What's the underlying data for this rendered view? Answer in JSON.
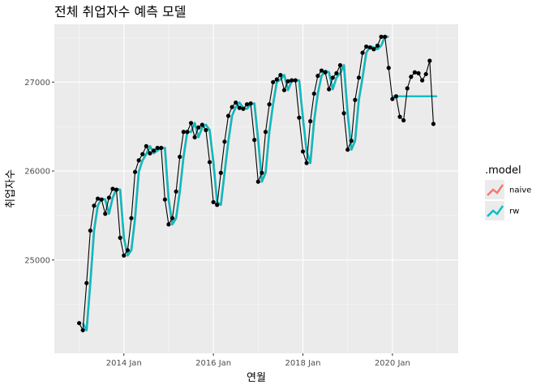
{
  "chart_data": {
    "type": "line",
    "title": "전체 취업자수 예측 모델",
    "xlabel": "연월",
    "ylabel": "취업자수",
    "x_start": "2013-01",
    "x_end": "2020-12",
    "x_ticks": [
      "2014 Jan",
      "2016 Jan",
      "2018 Jan",
      "2020 Jan"
    ],
    "y_ticks": [
      25000,
      26000,
      27000
    ],
    "ylim": [
      23950,
      27650
    ],
    "grid": true,
    "legend_position": "right",
    "legend_title": ".model",
    "observed": {
      "start": "2013-01",
      "values": [
        24290,
        24210,
        24740,
        25330,
        25610,
        25690,
        25680,
        25520,
        25700,
        25800,
        25790,
        25250,
        25050,
        25110,
        25470,
        25990,
        26120,
        26190,
        26280,
        26200,
        26230,
        26260,
        26260,
        25680,
        25400,
        25470,
        25770,
        26160,
        26440,
        26440,
        26540,
        26380,
        26490,
        26520,
        26460,
        26100,
        25650,
        25620,
        25980,
        26330,
        26620,
        26720,
        26770,
        26710,
        26700,
        26750,
        26760,
        26350,
        25880,
        25980,
        26440,
        26750,
        27000,
        27030,
        27080,
        26910,
        27010,
        27020,
        27020,
        26600,
        26220,
        26090,
        26560,
        26870,
        27070,
        27130,
        27110,
        26920,
        27050,
        27100,
        27190,
        26650,
        26240,
        26340,
        26800,
        27050,
        27330,
        27400,
        27390,
        27370,
        27410,
        27510,
        27510,
        27160,
        26810,
        26840,
        26610,
        26570,
        26930,
        27060,
        27110,
        27100,
        27020,
        27090,
        27240,
        26530
      ]
    },
    "series": [
      {
        "name": "naive",
        "color": "#F8766D",
        "start": "2013-02",
        "values": [
          24290,
          24210,
          24740,
          25330,
          25610,
          25690,
          25680,
          25520,
          25700,
          25800,
          25790,
          25250,
          25050,
          25110,
          25470,
          25990,
          26120,
          26190,
          26280,
          26200,
          26230,
          26260,
          26260,
          25680,
          25400,
          25470,
          25770,
          26160,
          26440,
          26440,
          26540,
          26380,
          26490,
          26520,
          26460,
          26100,
          25650,
          25620,
          25980,
          26330,
          26620,
          26720,
          26770,
          26710,
          26700,
          26750,
          26760,
          26350,
          25880,
          25980,
          26440,
          26750,
          27000,
          27030,
          27080,
          26910,
          27010,
          27020,
          27020,
          26600,
          26220,
          26090,
          26560,
          26870,
          27070,
          27130,
          27110,
          26920,
          27050,
          27100,
          27190,
          26650,
          26240,
          26340,
          26800,
          27050,
          27330,
          27400,
          27390,
          27370,
          27410,
          27510,
          27510
        ]
      },
      {
        "name": "rw",
        "color": "#00BFC4",
        "start": "2013-02",
        "values": [
          24290,
          24210,
          24740,
          25330,
          25610,
          25690,
          25680,
          25520,
          25700,
          25800,
          25790,
          25250,
          25050,
          25110,
          25470,
          25990,
          26120,
          26190,
          26280,
          26200,
          26230,
          26260,
          26260,
          25680,
          25400,
          25470,
          25770,
          26160,
          26440,
          26440,
          26540,
          26380,
          26490,
          26520,
          26460,
          26100,
          25650,
          25620,
          25980,
          26330,
          26620,
          26720,
          26770,
          26710,
          26700,
          26750,
          26760,
          26350,
          25880,
          25980,
          26440,
          26750,
          27000,
          27030,
          27080,
          26910,
          27010,
          27020,
          27020,
          26600,
          26220,
          26090,
          26560,
          26870,
          27070,
          27130,
          27110,
          26920,
          27050,
          27100,
          27190,
          26650,
          26240,
          26340,
          26800,
          27050,
          27330,
          27400,
          27390,
          27370,
          27410,
          27510,
          27510
        ]
      }
    ],
    "forecast": {
      "start": "2020-01",
      "end": "2021-01",
      "value": 26840
    }
  }
}
